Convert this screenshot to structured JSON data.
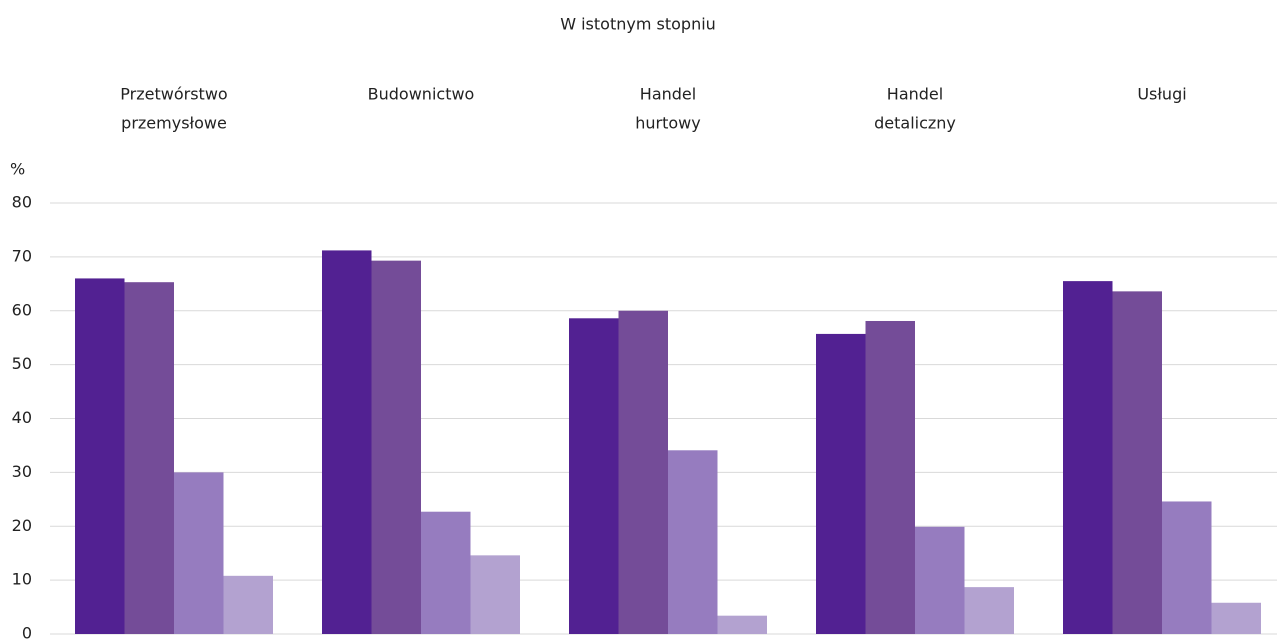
{
  "chart_data": {
    "type": "bar",
    "title": "W istotnym stopniu",
    "ylabel": "%",
    "categories": [
      [
        "Przetwórstwo",
        "przemysłowe"
      ],
      [
        "Budownictwo"
      ],
      [
        "Handel",
        "hurtowy"
      ],
      [
        "Handel",
        "detaliczny"
      ],
      [
        "Usługi"
      ]
    ],
    "series": [
      {
        "color": "#522192",
        "values": [
          66,
          71.2,
          58.6,
          55.7,
          65.5
        ]
      },
      {
        "color": "#744c98",
        "values": [
          65.3,
          69.3,
          60,
          58.1,
          63.6
        ]
      },
      {
        "color": "#967cbf",
        "values": [
          30,
          22.7,
          34.1,
          19.9,
          24.6
        ]
      },
      {
        "color": "#b3a2d0",
        "values": [
          10.8,
          14.6,
          3.4,
          8.7,
          5.8
        ]
      }
    ],
    "ylim": [
      0,
      80
    ],
    "yticks": [
      0,
      10,
      20,
      30,
      40,
      50,
      60,
      70,
      80
    ],
    "grid": true
  }
}
